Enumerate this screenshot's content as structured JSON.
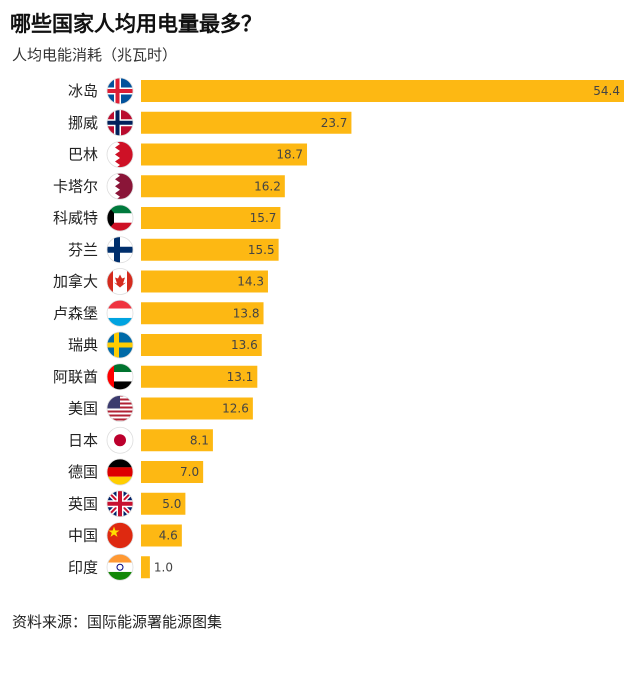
{
  "chart_data": {
    "type": "bar",
    "orientation": "horizontal",
    "title": "哪些国家人均用电量最多？",
    "subtitle": "人均电能消耗（兆瓦时）",
    "categories": [
      "冰岛",
      "挪威",
      "巴林",
      "卡塔尔",
      "科威特",
      "芬兰",
      "加拿大",
      "卢森堡",
      "瑞典",
      "阿联酋",
      "美国",
      "日本",
      "德国",
      "英国",
      "中国",
      "印度"
    ],
    "values": [
      54.4,
      23.7,
      18.7,
      16.2,
      15.7,
      15.5,
      14.3,
      13.8,
      13.6,
      13.1,
      12.6,
      8.1,
      7.0,
      5.0,
      4.6,
      1.0
    ],
    "value_labels": [
      "54.4",
      "23.7",
      "18.7",
      "16.2",
      "15.7",
      "15.5",
      "14.3",
      "13.8",
      "13.6",
      "13.1",
      "12.6",
      "8.1",
      "7.0",
      "5.0",
      "4.6",
      "1.0"
    ],
    "flags": [
      "iceland-flag",
      "norway-flag",
      "bahrain-flag",
      "qatar-flag",
      "kuwait-flag",
      "finland-flag",
      "canada-flag",
      "luxembourg-flag",
      "sweden-flag",
      "uae-flag",
      "usa-flag",
      "japan-flag",
      "germany-flag",
      "uk-flag",
      "china-flag",
      "india-flag"
    ],
    "xlim": [
      0,
      54.4
    ],
    "bar_color": "#FDB813",
    "grid": false,
    "legend": "none"
  },
  "source": "资料来源：国际能源署能源图集"
}
